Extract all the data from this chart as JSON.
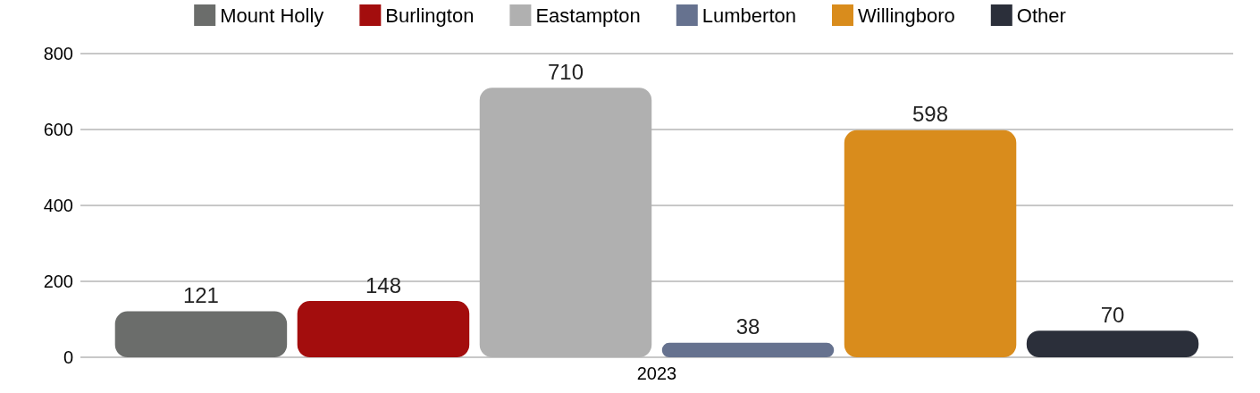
{
  "chart_data": {
    "type": "bar",
    "categories": [
      "2023"
    ],
    "series": [
      {
        "name": "Mount Holly",
        "color": "#6b6d6b",
        "values": [
          121
        ]
      },
      {
        "name": "Burlington",
        "color": "#a30d0d",
        "values": [
          148
        ]
      },
      {
        "name": "Eastampton",
        "color": "#b0b0b0",
        "values": [
          710
        ]
      },
      {
        "name": "Lumberton",
        "color": "#66728f",
        "values": [
          38
        ]
      },
      {
        "name": "Willingboro",
        "color": "#d98c1c",
        "values": [
          598
        ]
      },
      {
        "name": "Other",
        "color": "#2b2f3a",
        "values": [
          70
        ]
      }
    ],
    "ylim": [
      0,
      800
    ],
    "yticks": [
      0,
      200,
      400,
      600,
      800
    ],
    "grid": "y",
    "legend": "top",
    "data_labels": true
  }
}
